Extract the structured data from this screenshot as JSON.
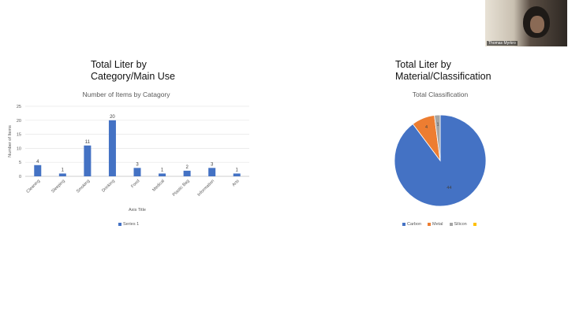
{
  "video": {
    "participant_name": "Thomas Myrkro"
  },
  "left_panel": {
    "heading_line1": "Total Liter by",
    "heading_line2": "Category/Main Use"
  },
  "right_panel": {
    "heading_line1": "Total Liter by",
    "heading_line2": "Material/Classification"
  },
  "chart_data": [
    {
      "type": "bar",
      "title": "Number of Items by Catagory",
      "xlabel": "Axis Title",
      "ylabel": "Number of Items",
      "categories": [
        "Cleaning",
        "Sleeping",
        "Smoking",
        "Drinking",
        "Food",
        "Medical",
        "Plastic Bag",
        "Information",
        "Arts"
      ],
      "series": [
        {
          "name": "Series 1",
          "values": [
            4,
            1,
            11,
            20,
            3,
            1,
            2,
            3,
            1
          ],
          "color": "#4472c4"
        }
      ],
      "ylim": [
        0,
        25
      ],
      "yticks": [
        0,
        5,
        10,
        15,
        20,
        25
      ],
      "grid": true,
      "legend": "bottom"
    },
    {
      "type": "pie",
      "title": "Total Classification",
      "labels": [
        "Carbon",
        "Metal",
        "Silicon",
        ""
      ],
      "values": [
        44,
        4,
        1,
        0
      ],
      "colors": [
        "#4472c4",
        "#ed7d31",
        "#a5a5a5",
        "#ffc000"
      ],
      "data_labels": [
        "44",
        "4",
        "1",
        ""
      ],
      "legend": "bottom"
    }
  ]
}
